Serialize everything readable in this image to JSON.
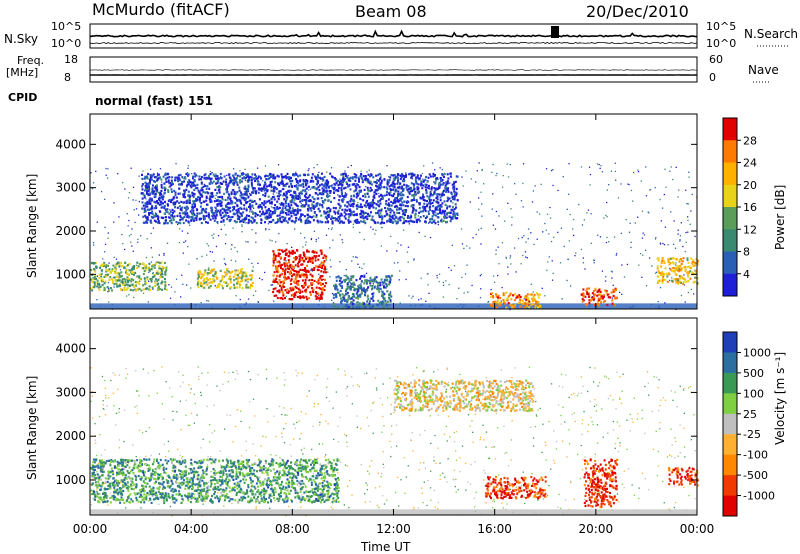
{
  "header": {
    "station": "McMurdo (fitACF)",
    "beam": "Beam 08",
    "date": "20/Dec/2010"
  },
  "top_panels": {
    "nsky_label": "N.Sky",
    "nsearch_label": "N.Search",
    "nsky_ticks": [
      "10^5",
      "10^0"
    ],
    "nsearch_ticks": [
      "10^5",
      "10^0"
    ],
    "freq_label_1": "Freq.",
    "freq_label_2": "[MHz]",
    "freq_ticks": [
      "18",
      "8"
    ],
    "nave_label": "Nave",
    "nave_ticks": [
      "60",
      "0"
    ],
    "cpid_label": "CPID",
    "cpid_value": "normal (fast) 151"
  },
  "colors": {
    "power_scale": [
      "#1f1fd8",
      "#2a5fb8",
      "#3a8a72",
      "#5a9e5a",
      "#e8d21a",
      "#ffb000",
      "#ff7a00",
      "#e00000"
    ],
    "velocity_scale": [
      "#e00000",
      "#f03a00",
      "#ff8800",
      "#ffb030",
      "#bfbfbf",
      "#7fd040",
      "#3a9a55",
      "#2a6fa0",
      "#1f3fb8"
    ],
    "ground_scatter": "#bfbfbf"
  },
  "chart_data": [
    {
      "type": "heatmap",
      "name": "power",
      "ylabel": "Slant Range [km]",
      "ylim": [
        200,
        4700
      ],
      "yticks": [
        "1000",
        "2000",
        "3000",
        "4000"
      ],
      "x": [
        "00:00",
        "04:00",
        "08:00",
        "12:00",
        "16:00",
        "20:00",
        "00:00"
      ],
      "colorbar_label": "Power [dB]",
      "colorbar_ticks": [
        "4",
        "8",
        "12",
        "16",
        "20",
        "24",
        "28"
      ],
      "features": [
        {
          "t0": 0.0,
          "t1": 3.0,
          "r0": 650,
          "r1": 1300,
          "level": 0.45
        },
        {
          "t0": 4.2,
          "t1": 6.4,
          "r0": 700,
          "r1": 1150,
          "level": 0.55
        },
        {
          "t0": 7.2,
          "t1": 9.3,
          "r0": 450,
          "r1": 1600,
          "level": 0.95
        },
        {
          "t0": 9.6,
          "t1": 11.9,
          "r0": 250,
          "r1": 1000,
          "level": 0.25
        },
        {
          "t0": 15.8,
          "t1": 17.8,
          "r0": 250,
          "r1": 600,
          "level": 0.75
        },
        {
          "t0": 19.4,
          "t1": 20.8,
          "r0": 300,
          "r1": 700,
          "level": 0.9
        },
        {
          "t0": 22.4,
          "t1": 24.0,
          "r0": 800,
          "r1": 1400,
          "level": 0.65
        },
        {
          "t0": 2.0,
          "t1": 14.5,
          "r0": 2200,
          "r1": 3350,
          "level": 0.1
        }
      ]
    },
    {
      "type": "heatmap",
      "name": "velocity",
      "ylabel": "Slant Range [km]",
      "ylim": [
        200,
        4700
      ],
      "yticks": [
        "1000",
        "2000",
        "3000",
        "4000"
      ],
      "x": [
        "00:00",
        "04:00",
        "08:00",
        "12:00",
        "16:00",
        "20:00",
        "00:00"
      ],
      "xlabel": "Time UT",
      "colorbar_label": "Velocity [m s⁻¹]",
      "colorbar_ticks": [
        "1000",
        "500",
        "100",
        "25",
        "-25",
        "-100",
        "-500",
        "-1000"
      ],
      "features": [
        {
          "t0": 0.0,
          "t1": 9.8,
          "r0": 500,
          "r1": 1500,
          "level": 0.72
        },
        {
          "t0": 15.6,
          "t1": 18.0,
          "r0": 600,
          "r1": 1100,
          "level": 0.15
        },
        {
          "t0": 19.5,
          "t1": 20.8,
          "r0": 400,
          "r1": 1500,
          "level": 0.1
        },
        {
          "t0": 22.8,
          "t1": 24.0,
          "r0": 900,
          "r1": 1300,
          "level": 0.12
        },
        {
          "t0": 12.0,
          "t1": 17.5,
          "r0": 2600,
          "r1": 3300,
          "level": 0.45
        }
      ]
    }
  ]
}
